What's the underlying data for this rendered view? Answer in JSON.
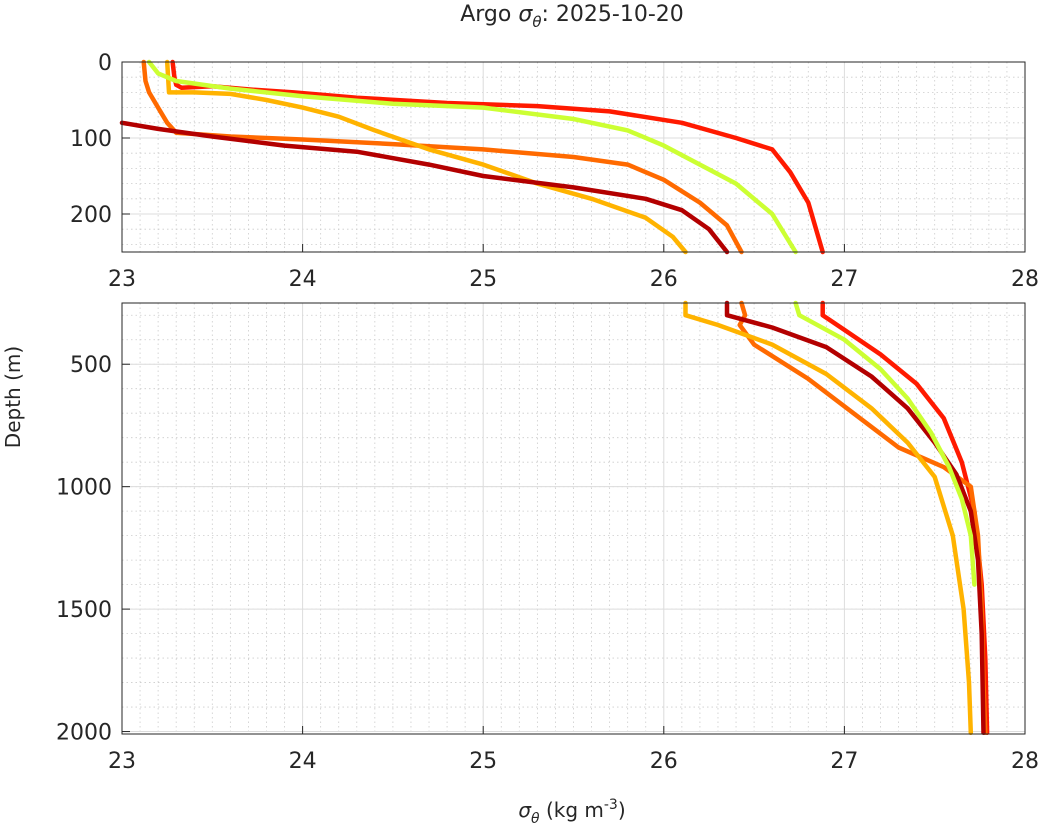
{
  "chart_data": {
    "type": "line",
    "title": {
      "prefix": "Argo ",
      "symbol": "σ",
      "subscript": "θ",
      "suffix": ": 2025-10-20"
    },
    "xlabel": {
      "symbol": "σ",
      "subscript": "θ",
      "units": " (kg m",
      "exponent": "-3",
      "close": ")"
    },
    "ylabel": "Depth (m)",
    "grid": true,
    "panels": [
      {
        "name": "upper",
        "xlim": [
          23,
          28
        ],
        "ylim": [
          0,
          250
        ],
        "y_reversed": true,
        "xticks": [
          "23",
          "24",
          "25",
          "26",
          "27",
          "28"
        ],
        "yticks": [
          {
            "v": 0,
            "label": "0"
          },
          {
            "v": 100,
            "label": "100"
          },
          {
            "v": 200,
            "label": "200"
          }
        ]
      },
      {
        "name": "lower",
        "xlim": [
          23,
          28
        ],
        "ylim": [
          250,
          2010
        ],
        "y_reversed": true,
        "xticks": [
          "23",
          "24",
          "25",
          "26",
          "27",
          "28"
        ],
        "yticks": [
          {
            "v": 500,
            "label": "500"
          },
          {
            "v": 1000,
            "label": "1000"
          },
          {
            "v": 1500,
            "label": "1500"
          },
          {
            "v": 2000,
            "label": "2000"
          }
        ]
      }
    ],
    "series": [
      {
        "color": "#ff1a00",
        "points": [
          [
            23.28,
            0
          ],
          [
            23.29,
            20
          ],
          [
            23.3,
            30
          ],
          [
            23.33,
            34
          ],
          [
            23.5,
            32
          ],
          [
            23.7,
            36
          ],
          [
            23.95,
            40
          ],
          [
            24.3,
            47
          ],
          [
            24.8,
            54
          ],
          [
            25.3,
            58
          ],
          [
            25.7,
            65
          ],
          [
            26.1,
            80
          ],
          [
            26.4,
            100
          ],
          [
            26.6,
            115
          ],
          [
            26.7,
            145
          ],
          [
            26.8,
            185
          ],
          [
            26.88,
            250
          ],
          [
            26.88,
            300
          ],
          [
            27.0,
            360
          ],
          [
            27.2,
            460
          ],
          [
            27.4,
            580
          ],
          [
            27.55,
            720
          ],
          [
            27.65,
            900
          ],
          [
            27.72,
            1100
          ],
          [
            27.76,
            1400
          ],
          [
            27.78,
            1700
          ],
          [
            27.79,
            2005
          ]
        ]
      },
      {
        "color": "#ff6a00",
        "points": [
          [
            23.12,
            0
          ],
          [
            23.13,
            25
          ],
          [
            23.15,
            40
          ],
          [
            23.2,
            60
          ],
          [
            23.25,
            80
          ],
          [
            23.3,
            93
          ],
          [
            23.6,
            98
          ],
          [
            24.0,
            102
          ],
          [
            24.5,
            108
          ],
          [
            25.0,
            115
          ],
          [
            25.5,
            125
          ],
          [
            25.8,
            135
          ],
          [
            26.0,
            155
          ],
          [
            26.2,
            185
          ],
          [
            26.35,
            215
          ],
          [
            26.43,
            250
          ],
          [
            26.45,
            300
          ],
          [
            26.42,
            340
          ],
          [
            26.5,
            420
          ],
          [
            26.8,
            560
          ],
          [
            27.05,
            700
          ],
          [
            27.3,
            840
          ],
          [
            27.55,
            920
          ],
          [
            27.7,
            1000
          ],
          [
            27.74,
            1200
          ],
          [
            27.76,
            1500
          ],
          [
            27.77,
            1800
          ],
          [
            27.78,
            2005
          ]
        ]
      },
      {
        "color": "#ffb300",
        "points": [
          [
            23.25,
            0
          ],
          [
            23.26,
            40
          ],
          [
            23.4,
            40
          ],
          [
            23.6,
            42
          ],
          [
            23.8,
            50
          ],
          [
            24.0,
            60
          ],
          [
            24.2,
            72
          ],
          [
            24.4,
            90
          ],
          [
            24.7,
            115
          ],
          [
            25.0,
            135
          ],
          [
            25.3,
            160
          ],
          [
            25.6,
            180
          ],
          [
            25.9,
            205
          ],
          [
            26.05,
            230
          ],
          [
            26.12,
            250
          ],
          [
            26.12,
            300
          ],
          [
            26.3,
            340
          ],
          [
            26.6,
            420
          ],
          [
            26.9,
            540
          ],
          [
            27.15,
            680
          ],
          [
            27.35,
            820
          ],
          [
            27.5,
            960
          ],
          [
            27.6,
            1200
          ],
          [
            27.66,
            1500
          ],
          [
            27.69,
            1800
          ],
          [
            27.7,
            2005
          ]
        ]
      },
      {
        "color": "#b30000",
        "points": [
          [
            23.0,
            80
          ],
          [
            23.2,
            88
          ],
          [
            23.5,
            98
          ],
          [
            23.9,
            110
          ],
          [
            24.3,
            118
          ],
          [
            24.7,
            135
          ],
          [
            25.0,
            150
          ],
          [
            25.5,
            165
          ],
          [
            25.9,
            180
          ],
          [
            26.1,
            195
          ],
          [
            26.25,
            220
          ],
          [
            26.35,
            250
          ],
          [
            26.35,
            300
          ],
          [
            26.6,
            350
          ],
          [
            26.9,
            430
          ],
          [
            27.15,
            550
          ],
          [
            27.35,
            680
          ],
          [
            27.5,
            820
          ],
          [
            27.62,
            950
          ],
          [
            27.7,
            1100
          ],
          [
            27.74,
            1300
          ],
          [
            27.76,
            1600
          ],
          [
            27.77,
            2005
          ]
        ]
      },
      {
        "color": "#ccff33",
        "points": [
          [
            23.15,
            0
          ],
          [
            23.2,
            15
          ],
          [
            23.3,
            25
          ],
          [
            23.6,
            35
          ],
          [
            24.0,
            45
          ],
          [
            24.5,
            55
          ],
          [
            25.0,
            60
          ],
          [
            25.5,
            75
          ],
          [
            25.8,
            90
          ],
          [
            26.0,
            110
          ],
          [
            26.2,
            135
          ],
          [
            26.4,
            160
          ],
          [
            26.6,
            200
          ],
          [
            26.73,
            250
          ],
          [
            26.75,
            300
          ],
          [
            27.0,
            400
          ],
          [
            27.2,
            520
          ],
          [
            27.35,
            640
          ],
          [
            27.48,
            780
          ],
          [
            27.58,
            920
          ],
          [
            27.65,
            1050
          ],
          [
            27.7,
            1200
          ],
          [
            27.72,
            1400
          ]
        ]
      }
    ]
  }
}
